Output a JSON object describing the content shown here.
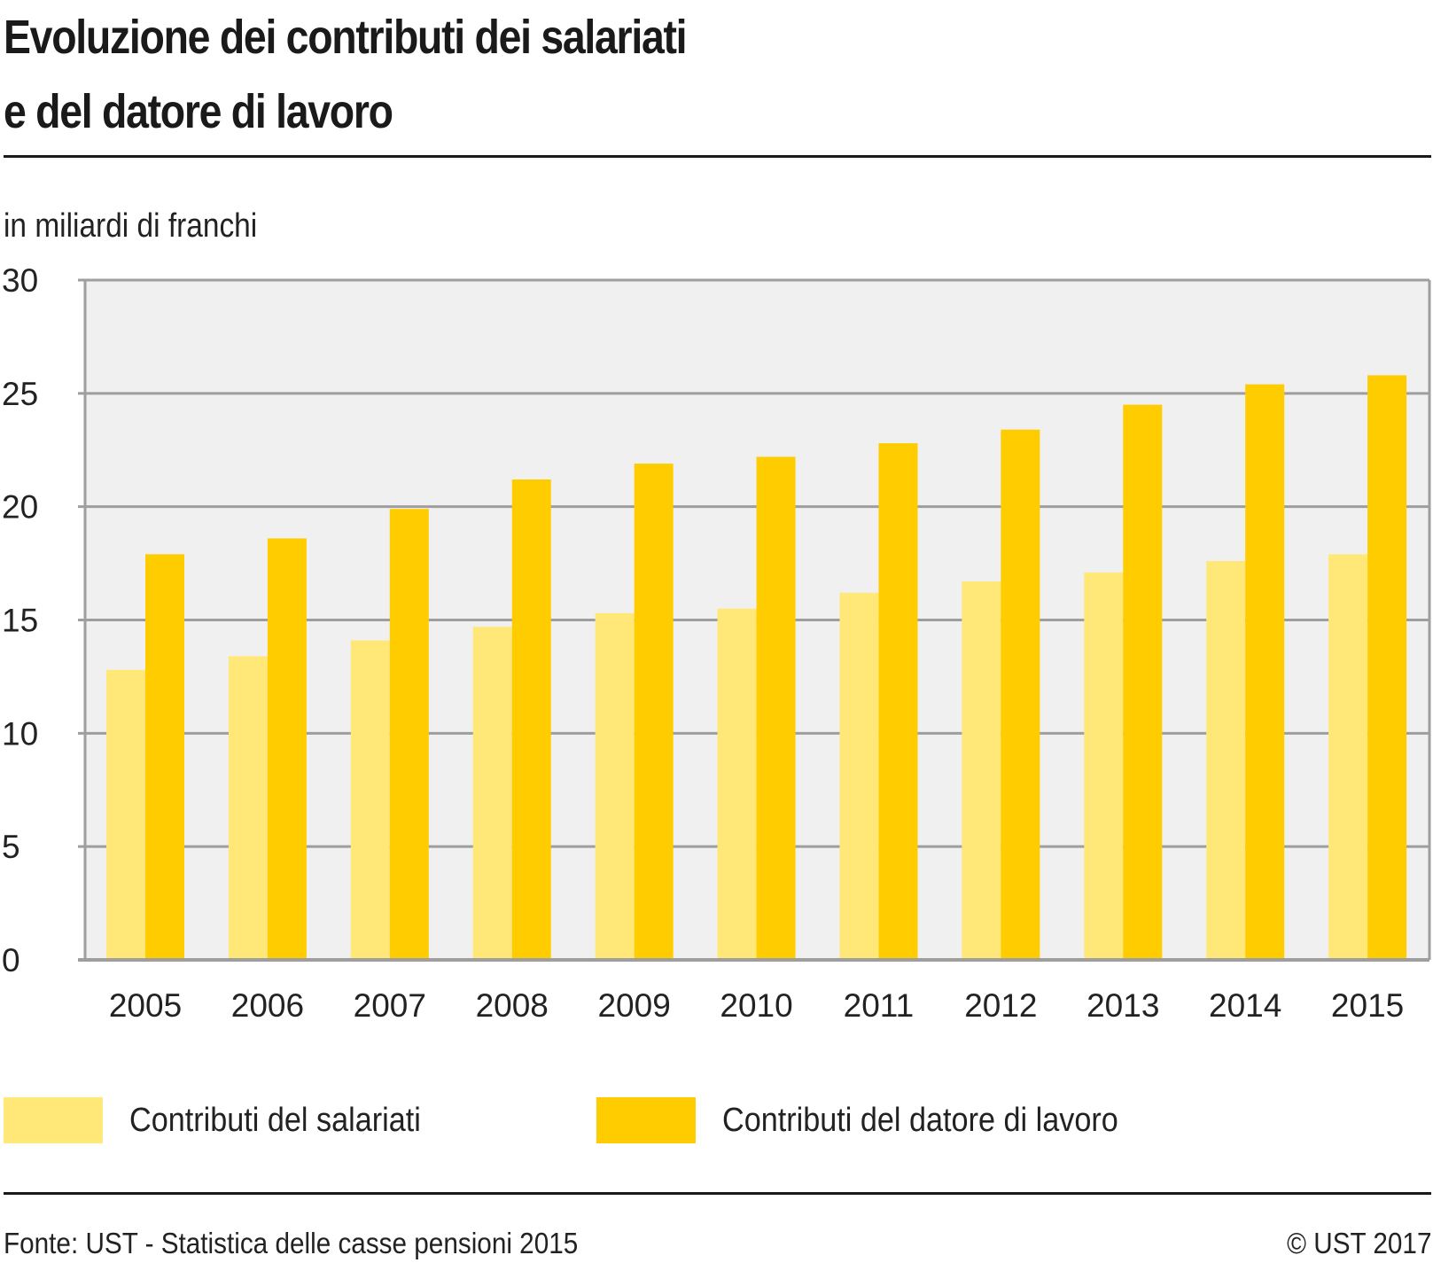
{
  "header": {
    "title_line1": "Evoluzione dei contributi dei salariati",
    "title_line2": "e del datore di lavoro"
  },
  "footer": {
    "source": "Fonte: UST - Statistica delle casse pensioni 2015",
    "copyright": "© UST 2017"
  },
  "colors": {
    "salariati": "#FFE878",
    "datore": "#FFCC00",
    "plot_background": "#F0F0F0",
    "gridline": "#9E9E9E"
  },
  "chart_data": {
    "type": "bar",
    "title": "Evoluzione dei contributi dei salariati e del datore di lavoro",
    "ylabel": "in miliardi di franchi",
    "xlabel": "",
    "ylim": [
      0,
      30
    ],
    "yticks": [
      0,
      5,
      10,
      15,
      20,
      25,
      30
    ],
    "grid": true,
    "legend_position": "bottom",
    "categories": [
      "2005",
      "2006",
      "2007",
      "2008",
      "2009",
      "2010",
      "2011",
      "2012",
      "2013",
      "2014",
      "2015"
    ],
    "series": [
      {
        "name": "Contributi del salariati",
        "color": "#FFE878",
        "values": [
          12.8,
          13.4,
          14.1,
          14.7,
          15.3,
          15.5,
          16.2,
          16.7,
          17.1,
          17.6,
          17.9
        ]
      },
      {
        "name": "Contributi del datore di lavoro",
        "color": "#FFCC00",
        "values": [
          17.9,
          18.6,
          19.9,
          21.2,
          21.9,
          22.2,
          22.8,
          23.4,
          24.5,
          25.4,
          25.8
        ]
      }
    ]
  }
}
